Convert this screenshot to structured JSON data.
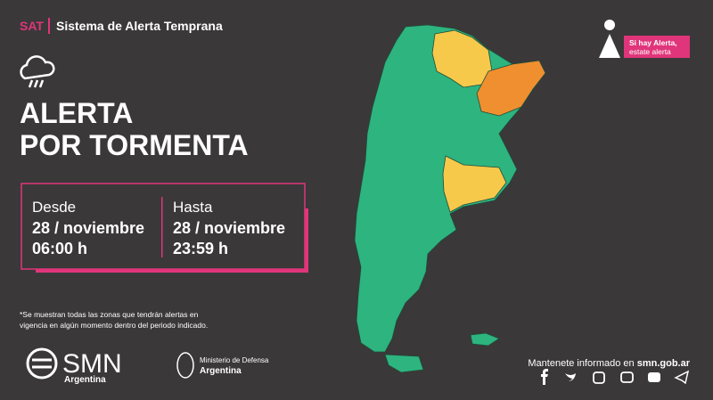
{
  "header": {
    "acronym": "SAT",
    "system": "Sistema de Alerta Temprana"
  },
  "badge": {
    "line1": "Si hay Alerta,",
    "line2": "estate alerta"
  },
  "title": {
    "line1": "ALERTA",
    "line2": "POR TORMENTA"
  },
  "period": {
    "from": {
      "label": "Desde",
      "date": "28 / noviembre",
      "time": "06:00 h"
    },
    "to": {
      "label": "Hasta",
      "date": "28 / noviembre",
      "time": "23:59 h"
    }
  },
  "footnote": {
    "line1": "*Se muestran todas las zonas que tendrán alertas en",
    "line2": "vigencia en algún momento dentro del periodo indicado."
  },
  "logos": {
    "smn": "SMN",
    "smn_country": "Argentina",
    "ministry": "Ministerio de Defensa",
    "ministry_country": "Argentina"
  },
  "footer": {
    "text": "Mantenete informado en ",
    "site": "smn.gob.ar"
  }
}
